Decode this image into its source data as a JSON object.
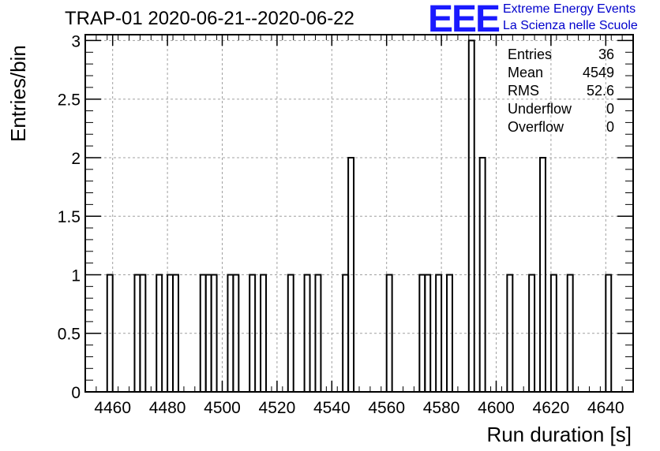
{
  "header": {
    "title": "TRAP-01 2020-06-21--2020-06-22",
    "logo_text": "EEE",
    "logo_line1": "Extreme Energy Events",
    "logo_line2": "La Scienza nelle Scuole"
  },
  "stats": [
    {
      "label": "Entries",
      "value": "36"
    },
    {
      "label": "Mean",
      "value": "4549"
    },
    {
      "label": "RMS",
      "value": "52.6"
    },
    {
      "label": "Underflow",
      "value": "0"
    },
    {
      "label": "Overflow",
      "value": "0"
    }
  ],
  "colors": {
    "logo": "#1a1aff",
    "logo_text": "#0000cc",
    "grid": "#a0a0a0",
    "line": "#000000"
  },
  "chart_data": {
    "type": "bar",
    "histogram": true,
    "xlabel": "Run duration [s]",
    "ylabel": "Entries/bin",
    "xlim": [
      4450,
      4650
    ],
    "ylim": [
      0,
      3.05
    ],
    "bin_width": 2,
    "grid": true,
    "legend_position": "top-right",
    "x_ticks": [
      4460,
      4480,
      4500,
      4520,
      4540,
      4560,
      4580,
      4600,
      4620,
      4640
    ],
    "x_tick_labels": [
      "4460",
      "4480",
      "4500",
      "4520",
      "4540",
      "4560",
      "4580",
      "4600",
      "4620",
      "4640"
    ],
    "y_ticks": [
      0,
      0.5,
      1,
      1.5,
      2,
      2.5,
      3
    ],
    "y_tick_labels": [
      "0",
      "0.5",
      "1",
      "1.5",
      "2",
      "2.5",
      "3"
    ],
    "bins": [
      {
        "x": 4458,
        "count": 1
      },
      {
        "x": 4468,
        "count": 1
      },
      {
        "x": 4470,
        "count": 1
      },
      {
        "x": 4476,
        "count": 1
      },
      {
        "x": 4480,
        "count": 1
      },
      {
        "x": 4482,
        "count": 1
      },
      {
        "x": 4492,
        "count": 1
      },
      {
        "x": 4494,
        "count": 1
      },
      {
        "x": 4496,
        "count": 1
      },
      {
        "x": 4502,
        "count": 1
      },
      {
        "x": 4504,
        "count": 1
      },
      {
        "x": 4510,
        "count": 1
      },
      {
        "x": 4514,
        "count": 1
      },
      {
        "x": 4524,
        "count": 1
      },
      {
        "x": 4530,
        "count": 1
      },
      {
        "x": 4534,
        "count": 1
      },
      {
        "x": 4544,
        "count": 1
      },
      {
        "x": 4546,
        "count": 2
      },
      {
        "x": 4560,
        "count": 1
      },
      {
        "x": 4572,
        "count": 1
      },
      {
        "x": 4574,
        "count": 1
      },
      {
        "x": 4578,
        "count": 1
      },
      {
        "x": 4582,
        "count": 1
      },
      {
        "x": 4590,
        "count": 3
      },
      {
        "x": 4594,
        "count": 2
      },
      {
        "x": 4604,
        "count": 1
      },
      {
        "x": 4612,
        "count": 1
      },
      {
        "x": 4616,
        "count": 2
      },
      {
        "x": 4620,
        "count": 1
      },
      {
        "x": 4626,
        "count": 1
      },
      {
        "x": 4640,
        "count": 1
      }
    ]
  }
}
